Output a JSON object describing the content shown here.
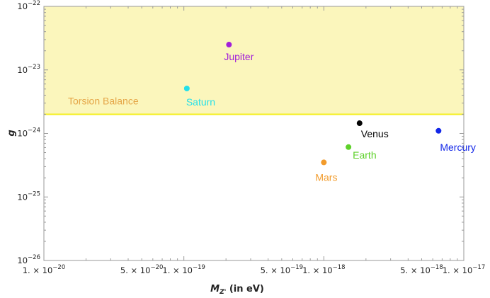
{
  "chart_data": {
    "type": "scatter",
    "title": "",
    "xlabel": "M_Z' (in eV)",
    "ylabel": "g",
    "xscale": "log",
    "yscale": "log",
    "xlim": [
      1e-20,
      1e-17
    ],
    "ylim": [
      1e-26,
      1e-22
    ],
    "grid": false,
    "x_ticks": [
      {
        "value": 1e-20,
        "mant": "1.",
        "exp": "-20"
      },
      {
        "value": 5e-20,
        "mant": "5.",
        "exp": "-20"
      },
      {
        "value": 1e-19,
        "mant": "1.",
        "exp": "-19"
      },
      {
        "value": 5e-19,
        "mant": "5.",
        "exp": "-19"
      },
      {
        "value": 1e-18,
        "mant": "1.",
        "exp": "-18"
      },
      {
        "value": 5e-18,
        "mant": "5.",
        "exp": "-18"
      },
      {
        "value": 1e-17,
        "mant": "1.",
        "exp": "-17"
      }
    ],
    "y_ticks": [
      {
        "value": 1e-26,
        "exp": "-26"
      },
      {
        "value": 1e-25,
        "exp": "-25"
      },
      {
        "value": 1e-24,
        "exp": "-24"
      },
      {
        "value": 1e-23,
        "exp": "-23"
      },
      {
        "value": 1e-22,
        "exp": "-22"
      }
    ],
    "region": {
      "label": "Torsion Balance",
      "g_lower": 2e-24,
      "fill_color": "#fbf6bc",
      "line_color": "#f5ef1e",
      "label_color": "#e5a648"
    },
    "points": [
      {
        "name": "Jupiter",
        "x": 2.1e-19,
        "y": 2.5e-23,
        "color": "#a21fd9"
      },
      {
        "name": "Saturn",
        "x": 1.05e-19,
        "y": 5.1e-24,
        "color": "#24e0ea"
      },
      {
        "name": "Venus",
        "x": 1.8e-18,
        "y": 1.45e-24,
        "color": "#050505"
      },
      {
        "name": "Mercury",
        "x": 6.6e-18,
        "y": 1.1e-24,
        "color": "#1327e8"
      },
      {
        "name": "Earth",
        "x": 1.5e-18,
        "y": 6.1e-25,
        "color": "#5ed12a"
      },
      {
        "name": "Mars",
        "x": 1e-18,
        "y": 3.5e-25,
        "color": "#f29b2b"
      }
    ]
  }
}
